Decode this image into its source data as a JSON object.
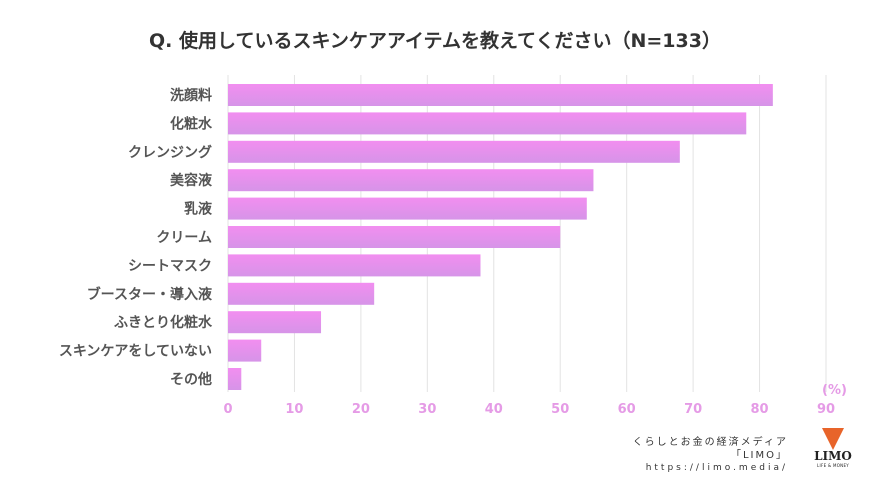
{
  "chart_data": {
    "type": "bar",
    "orientation": "horizontal",
    "title": "Q. 使用しているスキンケアアイテムを教えてください（N=133）",
    "unit_label": "(%)",
    "categories": [
      "洗顔料",
      "化粧水",
      "クレンジング",
      "美容液",
      "乳液",
      "クリーム",
      "シートマスク",
      "ブースター・導入液",
      "ふきとり化粧水",
      "スキンケアをしていない",
      "その他"
    ],
    "values": [
      82,
      78,
      68,
      55,
      54,
      50,
      38,
      22,
      14,
      5,
      2
    ],
    "xlim": [
      0,
      90
    ],
    "xticks": [
      "0",
      "10",
      "20",
      "30",
      "40",
      "50",
      "60",
      "70",
      "80",
      "90"
    ],
    "grid": true,
    "colors": {
      "bar_top": "#f28ef0",
      "bar_bottom": "#d694e8",
      "tick": "#e59be6",
      "grid": "#e3e3e3"
    }
  },
  "footer": {
    "tagline": "くらしとお金の経済メディア",
    "brand": "「LIMO」",
    "url": "https://limo.media/"
  },
  "logo": {
    "word": "LIMO",
    "sub": "LIFE & MONEY"
  }
}
